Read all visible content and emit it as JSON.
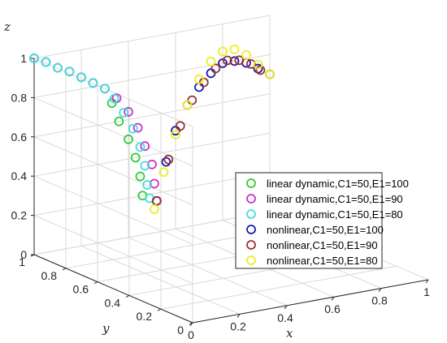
{
  "chart_data": {
    "type": "scatter3d",
    "axes": {
      "x": {
        "label": "x",
        "range": [
          0,
          1
        ],
        "ticks": [
          "0",
          "0.2",
          "0.4",
          "0.6",
          "0.8",
          "1"
        ]
      },
      "y": {
        "label": "y",
        "range": [
          0,
          1
        ],
        "ticks": [
          "0",
          "0.2",
          "0.4",
          "0.6",
          "0.8",
          "1"
        ]
      },
      "z": {
        "label": "z",
        "range": [
          0,
          1
        ],
        "ticks": [
          "0",
          "0.2",
          "0.4",
          "0.6",
          "0.8",
          "1"
        ]
      }
    },
    "grid": true,
    "legend_position": "right",
    "series": [
      {
        "name": "linear dynamic,C1=50,E1=100",
        "color": "#33cc33",
        "points": [
          [
            0,
            1,
            1
          ],
          [
            0.05,
            1,
            0.97
          ],
          [
            0.1,
            1,
            0.93
          ],
          [
            0.15,
            1,
            0.9
          ],
          [
            0.2,
            1,
            0.86
          ],
          [
            0.25,
            1,
            0.82
          ],
          [
            0.3,
            1,
            0.78
          ],
          [
            0.33,
            1,
            0.7
          ],
          [
            0.36,
            1,
            0.6
          ],
          [
            0.4,
            1,
            0.5
          ],
          [
            0.43,
            1,
            0.4
          ],
          [
            0.45,
            1,
            0.3
          ],
          [
            0.46,
            1,
            0.2
          ]
        ]
      },
      {
        "name": "linear dynamic,C1=50,E1=90",
        "color": "#cc33cc",
        "points": [
          [
            0,
            1,
            1
          ],
          [
            0.05,
            1,
            0.97
          ],
          [
            0.1,
            1,
            0.93
          ],
          [
            0.15,
            1,
            0.9
          ],
          [
            0.2,
            1,
            0.86
          ],
          [
            0.25,
            1,
            0.82
          ],
          [
            0.3,
            1,
            0.78
          ],
          [
            0.35,
            1,
            0.72
          ],
          [
            0.4,
            1,
            0.64
          ],
          [
            0.44,
            1,
            0.55
          ],
          [
            0.47,
            1,
            0.45
          ],
          [
            0.5,
            1,
            0.35
          ],
          [
            0.51,
            1,
            0.25
          ],
          [
            0.52,
            1,
            0.16
          ]
        ]
      },
      {
        "name": "linear dynamic,C1=50,E1=80",
        "color": "#44dddd",
        "points": [
          [
            0,
            1,
            1
          ],
          [
            0.05,
            1,
            0.97
          ],
          [
            0.1,
            1,
            0.93
          ],
          [
            0.15,
            1,
            0.9
          ],
          [
            0.2,
            1,
            0.86
          ],
          [
            0.25,
            1,
            0.82
          ],
          [
            0.3,
            1,
            0.78
          ],
          [
            0.34,
            1,
            0.72
          ],
          [
            0.38,
            1,
            0.64
          ],
          [
            0.42,
            1,
            0.55
          ],
          [
            0.45,
            1,
            0.45
          ],
          [
            0.47,
            1,
            0.35
          ],
          [
            0.48,
            1,
            0.25
          ],
          [
            0.49,
            1,
            0.18
          ]
        ]
      },
      {
        "name": "nonlinear,C1=50,E1=100",
        "color": "#1a1aaa",
        "points": [
          [
            0.52,
            1,
            0.16
          ],
          [
            0.56,
            1,
            0.35
          ],
          [
            0.6,
            1,
            0.5
          ],
          [
            0.65,
            1,
            0.62
          ],
          [
            0.7,
            1,
            0.7
          ],
          [
            0.75,
            1,
            0.76
          ],
          [
            0.8,
            1,
            0.8
          ],
          [
            0.85,
            1,
            0.8
          ],
          [
            0.9,
            1,
            0.78
          ],
          [
            0.95,
            1,
            0.74
          ],
          [
            1,
            1,
            0.7
          ]
        ]
      },
      {
        "name": "nonlinear,C1=50,E1=90",
        "color": "#993333",
        "points": [
          [
            0.52,
            1,
            0.16
          ],
          [
            0.57,
            1,
            0.36
          ],
          [
            0.62,
            1,
            0.52
          ],
          [
            0.67,
            1,
            0.64
          ],
          [
            0.72,
            1,
            0.72
          ],
          [
            0.77,
            1,
            0.78
          ],
          [
            0.82,
            1,
            0.81
          ],
          [
            0.87,
            1,
            0.8
          ],
          [
            0.92,
            1,
            0.77
          ],
          [
            0.96,
            1,
            0.73
          ],
          [
            1,
            1,
            0.7
          ]
        ]
      },
      {
        "name": "nonlinear,C1=50,E1=80",
        "color": "#eeee22",
        "points": [
          [
            0.51,
            1,
            0.12
          ],
          [
            0.55,
            1,
            0.3
          ],
          [
            0.6,
            1,
            0.48
          ],
          [
            0.65,
            1,
            0.62
          ],
          [
            0.7,
            1,
            0.74
          ],
          [
            0.75,
            1,
            0.82
          ],
          [
            0.8,
            1,
            0.86
          ],
          [
            0.85,
            1,
            0.86
          ],
          [
            0.9,
            1,
            0.82
          ],
          [
            0.95,
            1,
            0.76
          ],
          [
            1,
            1,
            0.7
          ]
        ]
      }
    ]
  }
}
